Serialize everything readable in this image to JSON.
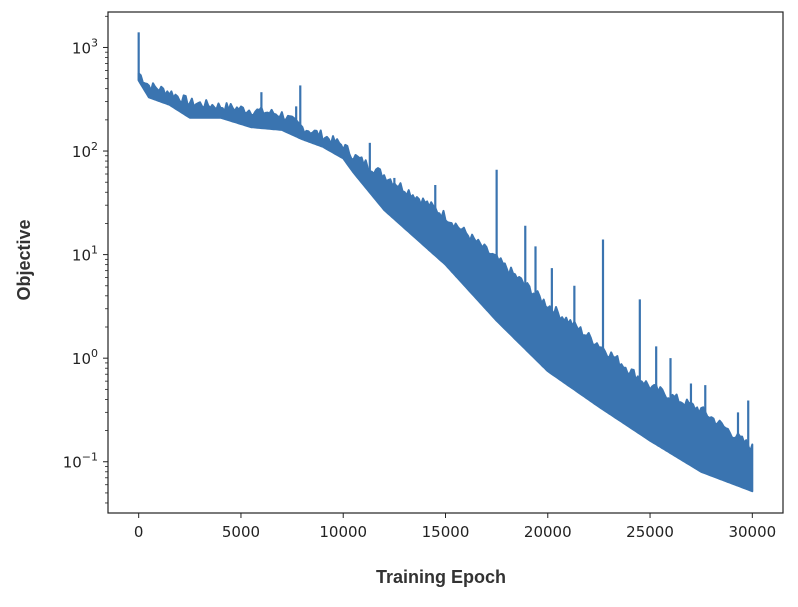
{
  "chart_data": {
    "type": "line",
    "title": "",
    "xlabel": "Training Epoch",
    "ylabel": "Objective",
    "xscale": "linear",
    "yscale": "log",
    "xlim": [
      -1500,
      31500
    ],
    "ylim": [
      0.032,
      2200
    ],
    "grid": false,
    "xticks": [
      0,
      5000,
      10000,
      15000,
      20000,
      25000,
      30000
    ],
    "xtick_labels": [
      "0",
      "5000",
      "10000",
      "15000",
      "20000",
      "25000",
      "30000"
    ],
    "yticks": [
      1000,
      100,
      10,
      1,
      0.1
    ],
    "ytick_labels": [
      {
        "base": "10",
        "exp": "3"
      },
      {
        "base": "10",
        "exp": "2"
      },
      {
        "base": "10",
        "exp": "1"
      },
      {
        "base": "10",
        "exp": "0"
      },
      {
        "base": "10",
        "exp": "−1"
      }
    ],
    "series": [
      {
        "name": "objective",
        "color": "#3a74b0",
        "envelope": {
          "epoch": [
            0,
            500,
            1500,
            2500,
            4000,
            5500,
            7000,
            8000,
            9000,
            10000,
            10500,
            12000,
            15000,
            17500,
            20000,
            22500,
            25000,
            27500,
            30000
          ],
          "low": [
            480,
            330,
            280,
            210,
            210,
            170,
            160,
            130,
            110,
            85,
            62,
            27,
            8,
            2.3,
            0.75,
            0.34,
            0.16,
            0.08,
            0.052
          ],
          "high": [
            500,
            380,
            330,
            260,
            240,
            220,
            200,
            150,
            125,
            100,
            80,
            52,
            21,
            8,
            2.9,
            1.2,
            0.47,
            0.28,
            0.12
          ]
        },
        "spikes": [
          {
            "epoch": 0,
            "value": 1400
          },
          {
            "epoch": 6000,
            "value": 370
          },
          {
            "epoch": 7700,
            "value": 270
          },
          {
            "epoch": 7900,
            "value": 430
          },
          {
            "epoch": 11300,
            "value": 120
          },
          {
            "epoch": 12500,
            "value": 55
          },
          {
            "epoch": 14500,
            "value": 47
          },
          {
            "epoch": 17500,
            "value": 66
          },
          {
            "epoch": 18900,
            "value": 19
          },
          {
            "epoch": 19400,
            "value": 12
          },
          {
            "epoch": 20200,
            "value": 7.4
          },
          {
            "epoch": 21300,
            "value": 5
          },
          {
            "epoch": 22700,
            "value": 14
          },
          {
            "epoch": 24500,
            "value": 3.7
          },
          {
            "epoch": 25300,
            "value": 1.3
          },
          {
            "epoch": 26000,
            "value": 1.0
          },
          {
            "epoch": 27000,
            "value": 0.57
          },
          {
            "epoch": 27700,
            "value": 0.55
          },
          {
            "epoch": 29300,
            "value": 0.3
          },
          {
            "epoch": 29800,
            "value": 0.39
          }
        ]
      }
    ]
  }
}
